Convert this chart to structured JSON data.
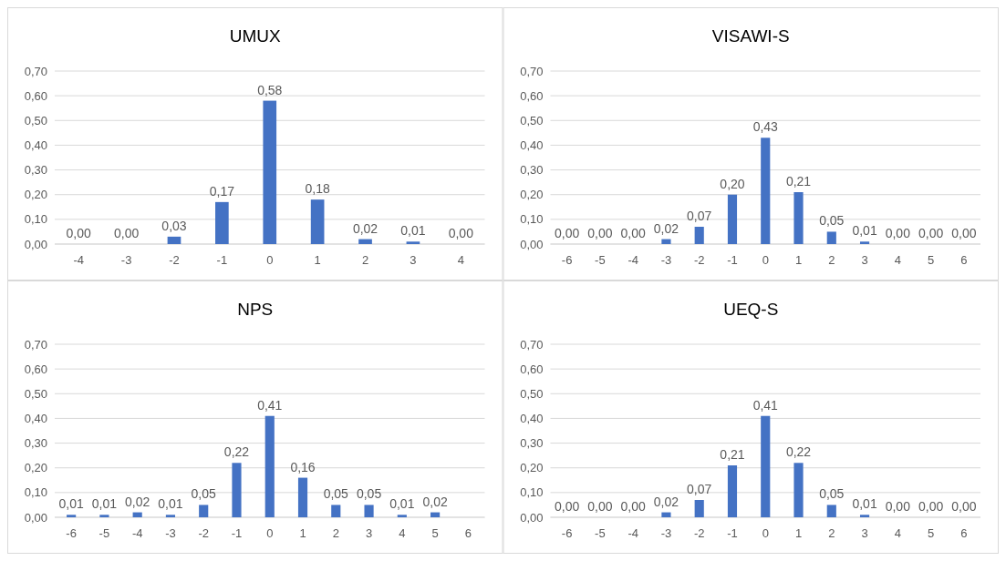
{
  "chart_data": [
    {
      "type": "bar",
      "title": "UMUX",
      "categories": [
        "-4",
        "-3",
        "-2",
        "-1",
        "0",
        "1",
        "2",
        "3",
        "4"
      ],
      "values": [
        0,
        0,
        0.03,
        0.17,
        0.58,
        0.18,
        0.02,
        0.01,
        0
      ],
      "value_labels": [
        "0,00",
        "0,00",
        "0,03",
        "0,17",
        "0,58",
        "0,18",
        "0,02",
        "0,01",
        "0,00"
      ],
      "color": "#4472c4",
      "ylim": [
        0,
        0.7
      ],
      "yticks": [
        {
          "value": 0,
          "label": "0,00"
        },
        {
          "value": 0.1,
          "label": "0,10"
        },
        {
          "value": 0.2,
          "label": "0,20"
        },
        {
          "value": 0.3,
          "label": "0,30"
        },
        {
          "value": 0.4,
          "label": "0,40"
        },
        {
          "value": 0.5,
          "label": "0,50"
        },
        {
          "value": 0.6,
          "label": "0,60"
        },
        {
          "value": 0.7,
          "label": "0,70"
        }
      ],
      "grid": "y"
    },
    {
      "type": "bar",
      "title": "VISAWI-S",
      "categories": [
        "-6",
        "-5",
        "-4",
        "-3",
        "-2",
        "-1",
        "0",
        "1",
        "2",
        "3",
        "4",
        "5",
        "6"
      ],
      "values": [
        0,
        0,
        0,
        0.02,
        0.07,
        0.2,
        0.43,
        0.21,
        0.05,
        0.01,
        0,
        0,
        0
      ],
      "value_labels": [
        "0,00",
        "0,00",
        "0,00",
        "0,02",
        "0,07",
        "0,20",
        "0,43",
        "0,21",
        "0,05",
        "0,01",
        "0,00",
        "0,00",
        "0,00"
      ],
      "color": "#4472c4",
      "ylim": [
        0,
        0.7
      ],
      "yticks": [
        {
          "value": 0,
          "label": "0,00"
        },
        {
          "value": 0.1,
          "label": "0,10"
        },
        {
          "value": 0.2,
          "label": "0,20"
        },
        {
          "value": 0.3,
          "label": "0,30"
        },
        {
          "value": 0.4,
          "label": "0,40"
        },
        {
          "value": 0.5,
          "label": "0,50"
        },
        {
          "value": 0.6,
          "label": "0,60"
        },
        {
          "value": 0.7,
          "label": "0,70"
        }
      ],
      "grid": "y"
    },
    {
      "type": "bar",
      "title": "NPS",
      "categories": [
        "-6",
        "-5",
        "-4",
        "-3",
        "-2",
        "-1",
        "0",
        "1",
        "2",
        "3",
        "4",
        "5",
        "6"
      ],
      "values": [
        0.01,
        0.01,
        0.02,
        0.01,
        0.05,
        0.22,
        0.41,
        0.16,
        0.05,
        0.05,
        0.01,
        0.02,
        null
      ],
      "value_labels": [
        "0,01",
        "0,01",
        "0,02",
        "0,01",
        "0,05",
        "0,22",
        "0,41",
        "0,16",
        "0,05",
        "0,05",
        "0,01",
        "0,02",
        null
      ],
      "color": "#4472c4",
      "ylim": [
        0,
        0.7
      ],
      "yticks": [
        {
          "value": 0,
          "label": "0,00"
        },
        {
          "value": 0.1,
          "label": "0,10"
        },
        {
          "value": 0.2,
          "label": "0,20"
        },
        {
          "value": 0.3,
          "label": "0,30"
        },
        {
          "value": 0.4,
          "label": "0,40"
        },
        {
          "value": 0.5,
          "label": "0,50"
        },
        {
          "value": 0.6,
          "label": "0,60"
        },
        {
          "value": 0.7,
          "label": "0,70"
        }
      ],
      "grid": "y"
    },
    {
      "type": "bar",
      "title": "UEQ-S",
      "categories": [
        "-6",
        "-5",
        "-4",
        "-3",
        "-2",
        "-1",
        "0",
        "1",
        "2",
        "3",
        "4",
        "5",
        "6"
      ],
      "values": [
        0,
        0,
        0,
        0.02,
        0.07,
        0.21,
        0.41,
        0.22,
        0.05,
        0.01,
        0,
        0,
        0
      ],
      "value_labels": [
        "0,00",
        "0,00",
        "0,00",
        "0,02",
        "0,07",
        "0,21",
        "0,41",
        "0,22",
        "0,05",
        "0,01",
        "0,00",
        "0,00",
        "0,00"
      ],
      "color": "#4472c4",
      "ylim": [
        0,
        0.7
      ],
      "yticks": [
        {
          "value": 0,
          "label": "0,00"
        },
        {
          "value": 0.1,
          "label": "0,10"
        },
        {
          "value": 0.2,
          "label": "0,20"
        },
        {
          "value": 0.3,
          "label": "0,30"
        },
        {
          "value": 0.4,
          "label": "0,40"
        },
        {
          "value": 0.5,
          "label": "0,50"
        },
        {
          "value": 0.6,
          "label": "0,60"
        },
        {
          "value": 0.7,
          "label": "0,70"
        }
      ],
      "grid": "y"
    }
  ]
}
